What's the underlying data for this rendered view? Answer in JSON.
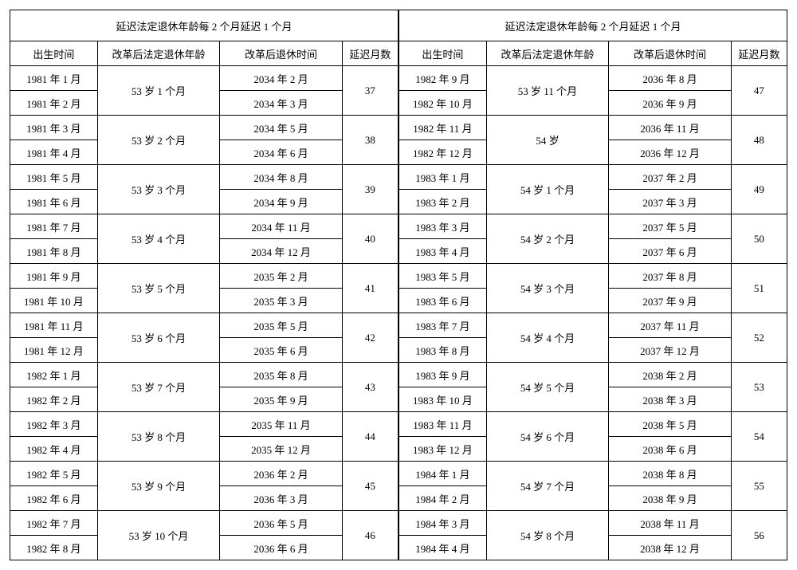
{
  "title": "延迟法定退休年龄每 2 个月延迟 1 个月",
  "headers": {
    "birth": "出生时间",
    "age": "改革后法定退休年龄",
    "retire": "改革后退休时间",
    "delay": "延迟月数"
  },
  "left": [
    {
      "b1": "1981 年 1 月",
      "b2": "1981 年 2 月",
      "age": "53 岁 1 个月",
      "r1": "2034 年 2 月",
      "r2": "2034 年 3 月",
      "d": "37"
    },
    {
      "b1": "1981 年 3 月",
      "b2": "1981 年 4 月",
      "age": "53 岁 2 个月",
      "r1": "2034 年 5 月",
      "r2": "2034 年 6 月",
      "d": "38"
    },
    {
      "b1": "1981 年 5 月",
      "b2": "1981 年 6 月",
      "age": "53 岁 3 个月",
      "r1": "2034 年 8 月",
      "r2": "2034 年 9 月",
      "d": "39"
    },
    {
      "b1": "1981 年 7 月",
      "b2": "1981 年 8 月",
      "age": "53 岁 4 个月",
      "r1": "2034 年 11 月",
      "r2": "2034 年 12 月",
      "d": "40"
    },
    {
      "b1": "1981 年 9 月",
      "b2": "1981 年 10 月",
      "age": "53 岁 5 个月",
      "r1": "2035 年 2 月",
      "r2": "2035 年 3 月",
      "d": "41"
    },
    {
      "b1": "1981 年 11 月",
      "b2": "1981 年 12 月",
      "age": "53 岁 6 个月",
      "r1": "2035 年 5 月",
      "r2": "2035 年 6 月",
      "d": "42"
    },
    {
      "b1": "1982 年 1 月",
      "b2": "1982 年 2 月",
      "age": "53 岁 7 个月",
      "r1": "2035 年 8 月",
      "r2": "2035 年 9 月",
      "d": "43"
    },
    {
      "b1": "1982 年 3 月",
      "b2": "1982 年 4 月",
      "age": "53 岁 8 个月",
      "r1": "2035 年 11 月",
      "r2": "2035 年 12 月",
      "d": "44"
    },
    {
      "b1": "1982 年 5 月",
      "b2": "1982 年 6 月",
      "age": "53 岁 9 个月",
      "r1": "2036 年 2 月",
      "r2": "2036 年 3 月",
      "d": "45"
    },
    {
      "b1": "1982 年 7 月",
      "b2": "1982 年 8 月",
      "age": "53 岁 10 个月",
      "r1": "2036 年 5 月",
      "r2": "2036 年 6 月",
      "d": "46"
    }
  ],
  "right": [
    {
      "b1": "1982 年 9 月",
      "b2": "1982 年 10 月",
      "age": "53 岁 11 个月",
      "r1": "2036 年 8 月",
      "r2": "2036 年 9 月",
      "d": "47"
    },
    {
      "b1": "1982 年 11 月",
      "b2": "1982 年 12 月",
      "age": "54 岁",
      "r1": "2036 年 11 月",
      "r2": "2036 年 12 月",
      "d": "48"
    },
    {
      "b1": "1983 年 1 月",
      "b2": "1983 年 2 月",
      "age": "54 岁 1 个月",
      "r1": "2037 年 2 月",
      "r2": "2037 年 3 月",
      "d": "49"
    },
    {
      "b1": "1983 年 3 月",
      "b2": "1983 年 4 月",
      "age": "54 岁 2 个月",
      "r1": "2037 年 5 月",
      "r2": "2037 年 6 月",
      "d": "50"
    },
    {
      "b1": "1983 年 5 月",
      "b2": "1983 年 6 月",
      "age": "54 岁 3 个月",
      "r1": "2037 年 8 月",
      "r2": "2037 年 9 月",
      "d": "51"
    },
    {
      "b1": "1983 年 7 月",
      "b2": "1983 年 8 月",
      "age": "54 岁 4 个月",
      "r1": "2037 年 11 月",
      "r2": "2037 年 12 月",
      "d": "52"
    },
    {
      "b1": "1983 年 9 月",
      "b2": "1983 年 10 月",
      "age": "54 岁 5 个月",
      "r1": "2038 年 2 月",
      "r2": "2038 年 3 月",
      "d": "53"
    },
    {
      "b1": "1983 年 11 月",
      "b2": "1983 年 12 月",
      "age": "54 岁 6 个月",
      "r1": "2038 年 5 月",
      "r2": "2038 年 6 月",
      "d": "54"
    },
    {
      "b1": "1984 年 1 月",
      "b2": "1984 年 2 月",
      "age": "54 岁 7 个月",
      "r1": "2038 年 8 月",
      "r2": "2038 年 9 月",
      "d": "55"
    },
    {
      "b1": "1984 年 3 月",
      "b2": "1984 年 4 月",
      "age": "54 岁 8 个月",
      "r1": "2038 年 11 月",
      "r2": "2038 年 12 月",
      "d": "56"
    }
  ]
}
